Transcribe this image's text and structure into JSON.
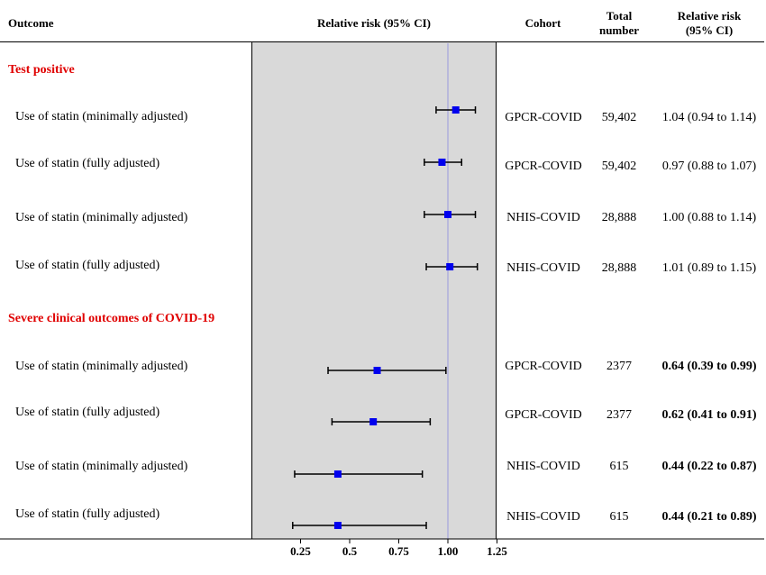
{
  "headers": {
    "outcome": "Outcome",
    "plot": "Relative risk (95% CI)",
    "cohort": "Cohort",
    "total_line1": "Total",
    "total_line2": "number",
    "rr_line1": "Relative risk",
    "rr_line2": "(95% CI)"
  },
  "sections": [
    {
      "title": "Test positive"
    },
    {
      "title": "Severe clinical outcomes of COVID-19"
    }
  ],
  "rows": [
    {
      "label": "Use of statin (minimally adjusted)",
      "cohort": "GPCR-COVID",
      "total": "59,402",
      "rr_text": "1.04 (0.94 to 1.14)",
      "bold": false
    },
    {
      "label": "Use of statin (fully adjusted)",
      "cohort": "GPCR-COVID",
      "total": "59,402",
      "rr_text": "0.97 (0.88 to 1.07)",
      "bold": false
    },
    {
      "label": "Use of statin (minimally adjusted)",
      "cohort": "NHIS-COVID",
      "total": "28,888",
      "rr_text": "1.00 (0.88 to 1.14)",
      "bold": false
    },
    {
      "label": "Use of statin (fully adjusted)",
      "cohort": "NHIS-COVID",
      "total": "28,888",
      "rr_text": "1.01 (0.89 to 1.15)",
      "bold": false
    },
    {
      "label": "Use of statin (minimally adjusted)",
      "cohort": "GPCR-COVID",
      "total": "2377",
      "rr_text": "0.64 (0.39 to 0.99)",
      "bold": true
    },
    {
      "label": "Use of statin (fully adjusted)",
      "cohort": "GPCR-COVID",
      "total": "2377",
      "rr_text": "0.62 (0.41 to 0.91)",
      "bold": true
    },
    {
      "label": "Use of statin (minimally adjusted)",
      "cohort": "NHIS-COVID",
      "total": "615",
      "rr_text": "0.44 (0.22 to 0.87)",
      "bold": true
    },
    {
      "label": "Use of statin (fully adjusted)",
      "cohort": "NHIS-COVID",
      "total": "615",
      "rr_text": "0.44 (0.21 to 0.89)",
      "bold": true
    }
  ],
  "chart_data": {
    "type": "forest",
    "xlim": [
      0,
      1.25
    ],
    "reference_line": 1.0,
    "xticks": [
      "0.25",
      "0.5",
      "0.75",
      "1.00",
      "1.25"
    ],
    "xtick_values": [
      0.25,
      0.5,
      0.75,
      1.0,
      1.25
    ],
    "marker_color": "#0000ee",
    "reference_color": "#9999dd",
    "points": [
      {
        "estimate": 1.04,
        "lower": 0.94,
        "upper": 1.14
      },
      {
        "estimate": 0.97,
        "lower": 0.88,
        "upper": 1.07
      },
      {
        "estimate": 1.0,
        "lower": 0.88,
        "upper": 1.14
      },
      {
        "estimate": 1.01,
        "lower": 0.89,
        "upper": 1.15
      },
      {
        "estimate": 0.64,
        "lower": 0.39,
        "upper": 0.99
      },
      {
        "estimate": 0.62,
        "lower": 0.41,
        "upper": 0.91
      },
      {
        "estimate": 0.44,
        "lower": 0.22,
        "upper": 0.87
      },
      {
        "estimate": 0.44,
        "lower": 0.21,
        "upper": 0.89
      }
    ]
  }
}
